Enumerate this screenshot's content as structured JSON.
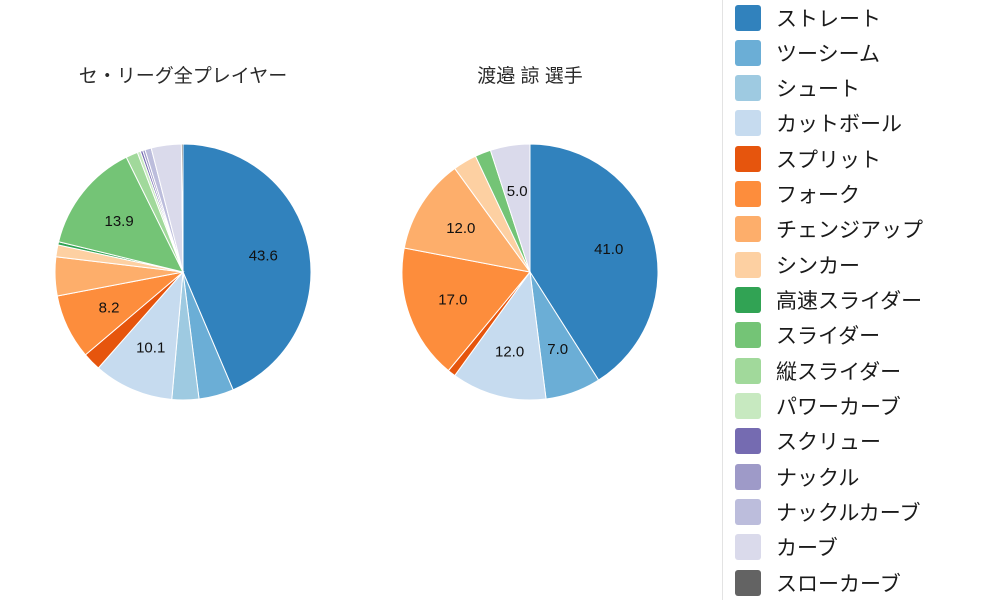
{
  "page": {
    "background": "#ffffff",
    "divider_color": "#e3e3e3"
  },
  "legend": {
    "position": "right",
    "items": [
      {
        "label": "ストレート",
        "color": "#3182bd"
      },
      {
        "label": "ツーシーム",
        "color": "#6baed6"
      },
      {
        "label": "シュート",
        "color": "#9ecae1"
      },
      {
        "label": "カットボール",
        "color": "#c6dbef"
      },
      {
        "label": "スプリット",
        "color": "#e6550d"
      },
      {
        "label": "フォーク",
        "color": "#fd8d3c"
      },
      {
        "label": "チェンジアップ",
        "color": "#fdae6b"
      },
      {
        "label": "シンカー",
        "color": "#fdd0a2"
      },
      {
        "label": "高速スライダー",
        "color": "#31a354"
      },
      {
        "label": "スライダー",
        "color": "#74c476"
      },
      {
        "label": "縦スライダー",
        "color": "#a1d99b"
      },
      {
        "label": "パワーカーブ",
        "color": "#c7e9c0"
      },
      {
        "label": "スクリュー",
        "color": "#756bb1"
      },
      {
        "label": "ナックル",
        "color": "#9e9ac8"
      },
      {
        "label": "ナックルカーブ",
        "color": "#bcbddc"
      },
      {
        "label": "カーブ",
        "color": "#dadaeb"
      },
      {
        "label": "スローカーブ",
        "color": "#636363"
      }
    ]
  },
  "chart_data": [
    {
      "type": "pie",
      "title": "セ・リーグ全プレイヤー",
      "unit": "percent",
      "start_angle": "top",
      "direction": "clockwise",
      "slices": [
        {
          "name": "ストレート",
          "value": 43.6,
          "label": "43.6"
        },
        {
          "name": "ツーシーム",
          "value": 4.4
        },
        {
          "name": "シュート",
          "value": 3.4
        },
        {
          "name": "カットボール",
          "value": 10.1,
          "label": "10.1"
        },
        {
          "name": "スプリット",
          "value": 2.3
        },
        {
          "name": "フォーク",
          "value": 8.2,
          "label": "8.2"
        },
        {
          "name": "チェンジアップ",
          "value": 4.9
        },
        {
          "name": "シンカー",
          "value": 1.5
        },
        {
          "name": "高速スライダー",
          "value": 0.4
        },
        {
          "name": "スライダー",
          "value": 13.9,
          "label": "13.9"
        },
        {
          "name": "縦スライダー",
          "value": 1.5
        },
        {
          "name": "パワーカーブ",
          "value": 0.4
        },
        {
          "name": "スクリュー",
          "value": 0.3
        },
        {
          "name": "ナックル",
          "value": 0.3
        },
        {
          "name": "ナックルカーブ",
          "value": 0.8
        },
        {
          "name": "カーブ",
          "value": 3.8
        },
        {
          "name": "スローカーブ",
          "value": 0.2
        }
      ]
    },
    {
      "type": "pie",
      "title": "渡邉 諒 選手",
      "unit": "percent",
      "start_angle": "top",
      "direction": "clockwise",
      "slices": [
        {
          "name": "ストレート",
          "value": 41.0,
          "label": "41.0"
        },
        {
          "name": "ツーシーム",
          "value": 7.0,
          "label": "7.0"
        },
        {
          "name": "カットボール",
          "value": 12.0,
          "label": "12.0"
        },
        {
          "name": "スプリット",
          "value": 1.0
        },
        {
          "name": "フォーク",
          "value": 17.0,
          "label": "17.0"
        },
        {
          "name": "チェンジアップ",
          "value": 12.0,
          "label": "12.0"
        },
        {
          "name": "シンカー",
          "value": 3.0
        },
        {
          "name": "スライダー",
          "value": 2.0
        },
        {
          "name": "カーブ",
          "value": 5.0,
          "label": "5.0"
        }
      ]
    }
  ]
}
